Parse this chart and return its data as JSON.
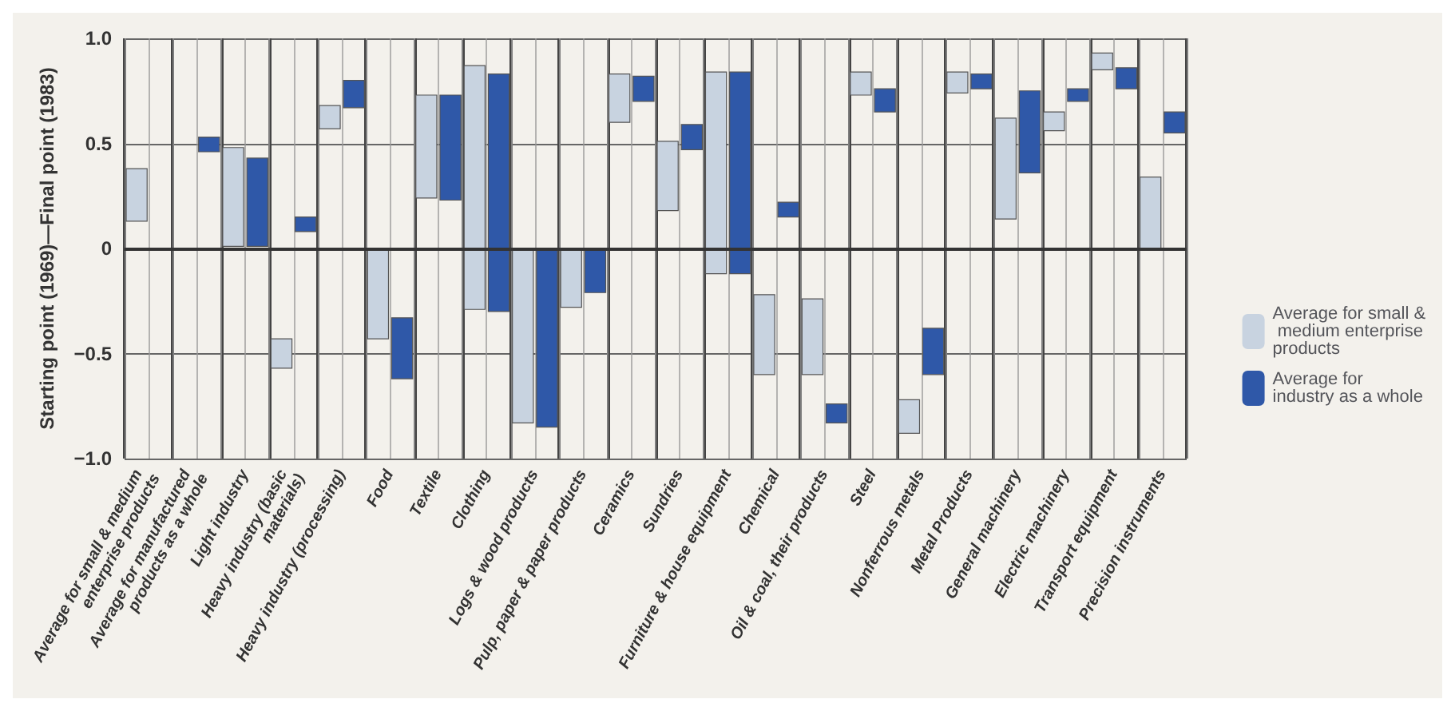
{
  "chart_data": {
    "type": "bar",
    "ylabel": "Starting point (1969)—Final point (1983)",
    "categories": [
      "Average for small & medium enterprise products",
      "Average for manufactured products as a whole",
      "Light industry",
      "Heavy industry (basic materials)",
      "Heavy industry (processing)",
      "Food",
      "Textile",
      "Clothing",
      "Logs & wood products",
      "Pulp, paper & paper products",
      "Ceramics",
      "Sundries",
      "Furniture & house equipment",
      "Chemical",
      "Oil & coal, their products",
      "Steel",
      "Nonferrous metals",
      "Metal Products",
      "General machinery",
      "Electric machinery",
      "Transport equipment",
      "Precision instruments"
    ],
    "series": [
      {
        "name": "Average for small & medium enterprise products",
        "color": "#c8d3e0",
        "base": [
          0.38,
          null,
          0.48,
          -0.57,
          0.57,
          0,
          0.73,
          0.87,
          0,
          0,
          0.83,
          0.51,
          0.84,
          -0.6,
          -0.6,
          0.84,
          -0.72,
          0.84,
          0.14,
          0.56,
          0.93,
          0.34
        ],
        "values": [
          -0.25,
          null,
          -0.47,
          0.14,
          0.11,
          -0.43,
          -0.49,
          -1.16,
          -0.83,
          -0.28,
          -0.23,
          -0.33,
          -0.96,
          0.38,
          0.36,
          -0.11,
          -0.16,
          -0.1,
          0.48,
          0.09,
          -0.08,
          -0.34
        ]
      },
      {
        "name": "Average for industry as a whole",
        "color": "#2f58a8",
        "base": [
          null,
          0.46,
          0.43,
          0.08,
          0.67,
          -0.33,
          0.73,
          0.83,
          0,
          0,
          0.82,
          0.59,
          0.84,
          0.22,
          -0.74,
          0.65,
          -0.6,
          0.76,
          0.36,
          0.7,
          0.76,
          0.55
        ],
        "values": [
          null,
          0.07,
          -0.42,
          0.07,
          0.13,
          -0.29,
          -0.5,
          -1.13,
          -0.85,
          -0.21,
          -0.12,
          -0.12,
          -0.96,
          -0.07,
          -0.09,
          0.11,
          0.22,
          0.07,
          0.39,
          0.06,
          0.1,
          0.1
        ]
      }
    ],
    "ylim": [
      -1,
      1
    ],
    "yticks": [
      {
        "value": -1,
        "label": "−1.0"
      },
      {
        "value": -0.5,
        "label": "−0.5"
      },
      0,
      0.5,
      {
        "value": 1,
        "label": "1.0"
      }
    ],
    "grid": true,
    "legend": "right"
  }
}
